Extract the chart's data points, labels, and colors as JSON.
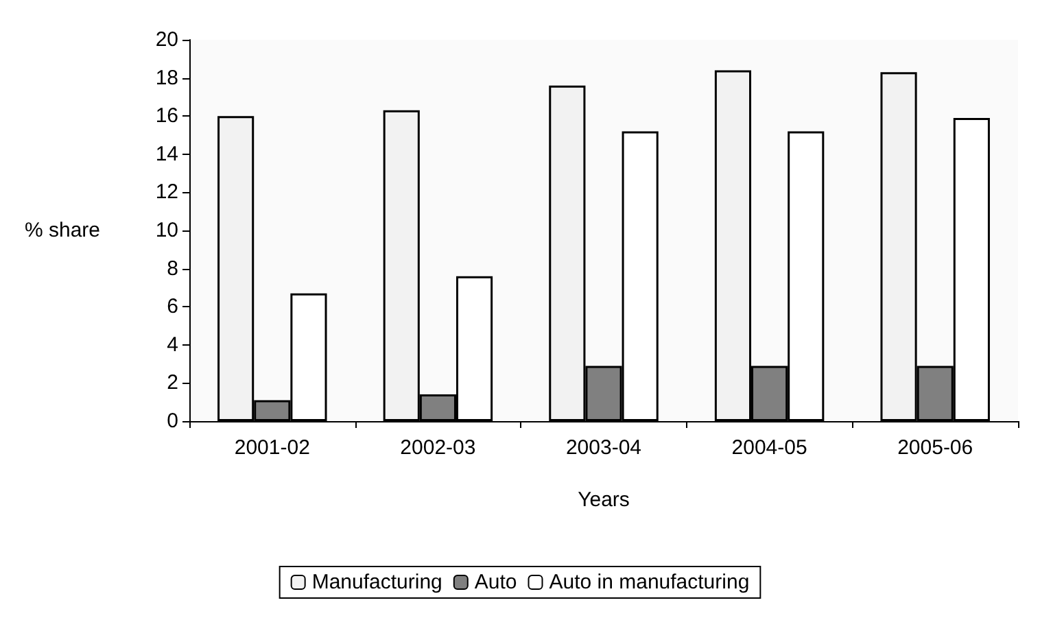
{
  "chart_data": {
    "type": "bar",
    "xlabel": "Years",
    "ylabel": "% share",
    "categories": [
      "2001-02",
      "2002-03",
      "2003-04",
      "2004-05",
      "2005-06"
    ],
    "series": [
      {
        "name": "Manufacturing",
        "color": "#f2f2f2",
        "values": [
          16.0,
          16.3,
          17.6,
          18.4,
          18.3
        ]
      },
      {
        "name": "Auto",
        "color": "#808080",
        "values": [
          1.1,
          1.4,
          2.9,
          2.9,
          2.9
        ]
      },
      {
        "name": "Auto in manufacturing",
        "color": "#ffffff",
        "values": [
          6.7,
          7.6,
          15.2,
          15.2,
          15.9
        ]
      }
    ],
    "ylim": [
      0,
      20
    ],
    "yticks": [
      0,
      2,
      4,
      6,
      8,
      10,
      12,
      14,
      16,
      18,
      20
    ],
    "grid": false,
    "legend": "bottom"
  }
}
